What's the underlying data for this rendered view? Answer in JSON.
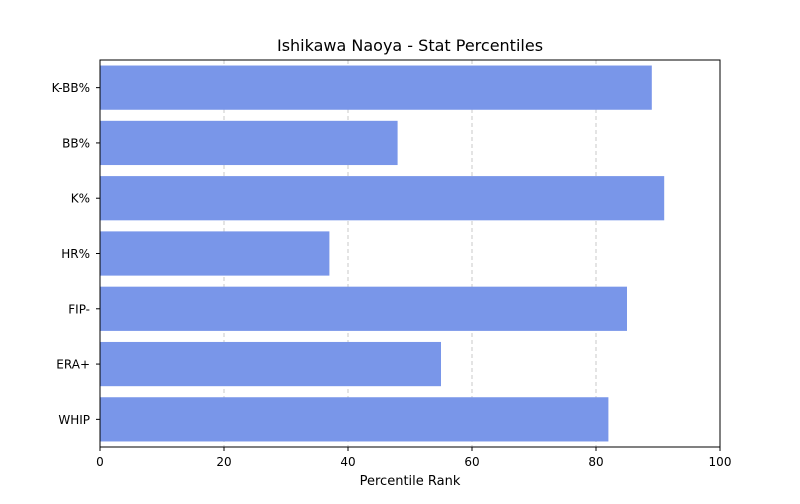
{
  "chart_data": {
    "type": "bar",
    "orientation": "horizontal",
    "title": "Ishikawa Naoya - Stat Percentiles",
    "xlabel": "Percentile Rank",
    "ylabel": "",
    "xlim": [
      0,
      100
    ],
    "xticks": [
      0,
      20,
      40,
      60,
      80,
      100
    ],
    "grid": "x-dashed",
    "categories": [
      "K-BB%",
      "BB%",
      "K%",
      "HR%",
      "FIP-",
      "ERA+",
      "WHIP"
    ],
    "values": [
      89,
      48,
      91,
      37,
      85,
      55,
      82
    ],
    "bar_color": "#7996E9"
  }
}
